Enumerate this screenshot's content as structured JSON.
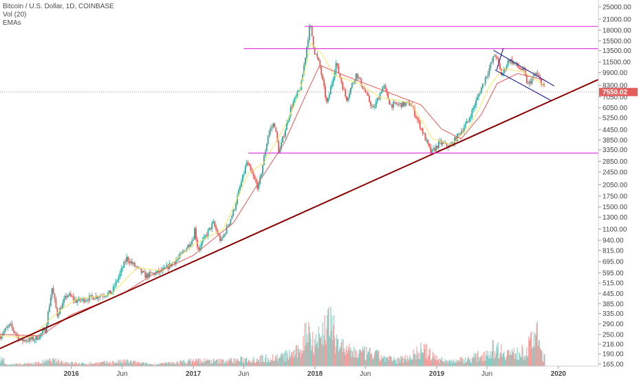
{
  "legend": {
    "title": "Bitcoin / U.S. Dollar, 1D, COINBASE",
    "volume": "Vol (20)",
    "emas": "EMAs"
  },
  "colors": {
    "up": "#26a69a",
    "down": "#ef5350",
    "trendline": "#8b0000",
    "horizontal_levels": "#e040e0",
    "channel": "#2a2a9a",
    "ema_fast": "#f5e96a",
    "ema_slow": "#e06060",
    "price_badge": "#e35d5d"
  },
  "chart_data": {
    "type": "candlestick",
    "title": "Bitcoin / U.S. Dollar, 1D, COINBASE",
    "y_scale": "log",
    "ylim": [
      160,
      27000
    ],
    "xlim": [
      "2015-06-01",
      "2020-04-30"
    ],
    "grid": false,
    "legend": "top-left",
    "y_ticks": [
      25000,
      21000,
      18000,
      15500,
      13500,
      11500,
      9900,
      8300,
      7050,
      6050,
      5250,
      4450,
      3850,
      3350,
      2850,
      2450,
      2050,
      1750,
      1500,
      1300,
      1100,
      940,
      815,
      695,
      595,
      515,
      445,
      385,
      335,
      290,
      250,
      218,
      190,
      165
    ],
    "y_tick_labels": [
      "25000.00",
      "21000.00",
      "18000.00",
      "15500.00",
      "13500.00",
      "11500.00",
      "9900.00",
      "8300.00",
      "7050.00",
      "6050.00",
      "5250.00",
      "4450.00",
      "3850.00",
      "3350.00",
      "2850.00",
      "2450.00",
      "2050.00",
      "1750.00",
      "1500.00",
      "1300.00",
      "1100.00",
      "940.00",
      "815.00",
      "695.00",
      "595.00",
      "515.00",
      "445.00",
      "385.00",
      "335.00",
      "290.00",
      "250.00",
      "218.00",
      "190.00",
      "165.00"
    ],
    "x_ticks": [
      {
        "date": "2016-01-01",
        "label": "2016"
      },
      {
        "date": "2016-06-01",
        "label": "Jun"
      },
      {
        "date": "2017-01-01",
        "label": "2017"
      },
      {
        "date": "2017-06-01",
        "label": "Jun"
      },
      {
        "date": "2018-01-01",
        "label": "2018"
      },
      {
        "date": "2018-06-01",
        "label": "Jun"
      },
      {
        "date": "2019-01-01",
        "label": "2019"
      },
      {
        "date": "2019-06-01",
        "label": "Jun"
      },
      {
        "date": "2020-01-01",
        "label": "2020"
      }
    ],
    "last_price": 7550.02,
    "last_price_label": "7550.02",
    "price_path": [
      [
        "2015-06-01",
        245
      ],
      [
        "2015-07-01",
        285
      ],
      [
        "2015-08-01",
        230
      ],
      [
        "2015-09-15",
        235
      ],
      [
        "2015-10-15",
        265
      ],
      [
        "2015-11-04",
        480
      ],
      [
        "2015-11-20",
        330
      ],
      [
        "2015-12-20",
        440
      ],
      [
        "2016-01-15",
        400
      ],
      [
        "2016-03-01",
        420
      ],
      [
        "2016-05-01",
        450
      ],
      [
        "2016-06-15",
        730
      ],
      [
        "2016-07-10",
        650
      ],
      [
        "2016-08-10",
        570
      ],
      [
        "2016-10-01",
        610
      ],
      [
        "2016-11-20",
        740
      ],
      [
        "2016-12-31",
        960
      ],
      [
        "2017-01-05",
        1100
      ],
      [
        "2017-01-15",
        820
      ],
      [
        "2017-03-01",
        1200
      ],
      [
        "2017-03-25",
        920
      ],
      [
        "2017-05-01",
        1400
      ],
      [
        "2017-06-10",
        2800
      ],
      [
        "2017-07-15",
        1950
      ],
      [
        "2017-08-15",
        4300
      ],
      [
        "2017-09-01",
        4900
      ],
      [
        "2017-09-15",
        3200
      ],
      [
        "2017-10-20",
        6000
      ],
      [
        "2017-11-20",
        8200
      ],
      [
        "2017-12-17",
        19800
      ],
      [
        "2017-12-30",
        13500
      ],
      [
        "2018-01-15",
        11000
      ],
      [
        "2018-02-06",
        6300
      ],
      [
        "2018-03-05",
        11300
      ],
      [
        "2018-04-05",
        6800
      ],
      [
        "2018-05-05",
        9800
      ],
      [
        "2018-06-25",
        5900
      ],
      [
        "2018-07-25",
        8300
      ],
      [
        "2018-08-15",
        6300
      ],
      [
        "2018-10-15",
        6400
      ],
      [
        "2018-11-20",
        4300
      ],
      [
        "2018-12-15",
        3200
      ],
      [
        "2019-01-10",
        3700
      ],
      [
        "2019-02-10",
        3500
      ],
      [
        "2019-04-05",
        5000
      ],
      [
        "2019-05-15",
        8000
      ],
      [
        "2019-06-26",
        13000
      ],
      [
        "2019-07-15",
        9500
      ],
      [
        "2019-08-06",
        12000
      ],
      [
        "2019-09-20",
        10000
      ],
      [
        "2019-10-01",
        8300
      ],
      [
        "2019-10-26",
        9800
      ],
      [
        "2019-11-15",
        8400
      ],
      [
        "2019-11-22",
        7550
      ]
    ],
    "ema_fast_path": [
      [
        "2015-06-01",
        245
      ],
      [
        "2015-09-01",
        240
      ],
      [
        "2015-11-20",
        340
      ],
      [
        "2016-01-15",
        410
      ],
      [
        "2016-05-01",
        440
      ],
      [
        "2016-07-15",
        640
      ],
      [
        "2016-10-01",
        610
      ],
      [
        "2017-01-01",
        880
      ],
      [
        "2017-04-01",
        1100
      ],
      [
        "2017-06-15",
        2400
      ],
      [
        "2017-08-01",
        2800
      ],
      [
        "2017-10-01",
        4600
      ],
      [
        "2017-11-15",
        7300
      ],
      [
        "2017-12-20",
        15000
      ],
      [
        "2018-01-20",
        13000
      ],
      [
        "2018-03-01",
        9500
      ],
      [
        "2018-05-15",
        8500
      ],
      [
        "2018-07-15",
        7000
      ],
      [
        "2018-10-15",
        6500
      ],
      [
        "2018-12-20",
        3900
      ],
      [
        "2019-02-15",
        3600
      ],
      [
        "2019-04-15",
        4800
      ],
      [
        "2019-06-10",
        8300
      ],
      [
        "2019-07-20",
        10500
      ],
      [
        "2019-09-20",
        10000
      ],
      [
        "2019-11-22",
        8200
      ]
    ],
    "ema_slow_path": [
      [
        "2015-06-01",
        250
      ],
      [
        "2015-10-01",
        245
      ],
      [
        "2016-01-01",
        330
      ],
      [
        "2016-06-01",
        440
      ],
      [
        "2016-09-01",
        580
      ],
      [
        "2017-01-01",
        760
      ],
      [
        "2017-05-01",
        1200
      ],
      [
        "2017-07-15",
        2100
      ],
      [
        "2017-10-01",
        3700
      ],
      [
        "2017-12-01",
        7000
      ],
      [
        "2018-01-15",
        11000
      ],
      [
        "2018-03-15",
        9800
      ],
      [
        "2018-06-01",
        8500
      ],
      [
        "2018-09-01",
        7200
      ],
      [
        "2018-11-15",
        6300
      ],
      [
        "2019-01-15",
        4500
      ],
      [
        "2019-03-15",
        3900
      ],
      [
        "2019-05-15",
        5500
      ],
      [
        "2019-07-01",
        8500
      ],
      [
        "2019-09-01",
        9800
      ],
      [
        "2019-11-22",
        8900
      ]
    ],
    "volume": [
      [
        "2015-06-15",
        0.03
      ],
      [
        "2015-09-15",
        0.06
      ],
      [
        "2015-11-04",
        0.12
      ],
      [
        "2016-02-01",
        0.05
      ],
      [
        "2016-06-18",
        0.1
      ],
      [
        "2016-09-01",
        0.04
      ],
      [
        "2017-01-05",
        0.12
      ],
      [
        "2017-03-15",
        0.1
      ],
      [
        "2017-06-15",
        0.14
      ],
      [
        "2017-09-15",
        0.18
      ],
      [
        "2017-11-15",
        0.3
      ],
      [
        "2017-12-10",
        0.9
      ],
      [
        "2017-12-22",
        0.55
      ],
      [
        "2018-01-20",
        0.6
      ],
      [
        "2018-02-06",
        1.0
      ],
      [
        "2018-04-10",
        0.3
      ],
      [
        "2018-06-25",
        0.25
      ],
      [
        "2018-09-01",
        0.12
      ],
      [
        "2018-11-20",
        0.35
      ],
      [
        "2019-02-01",
        0.1
      ],
      [
        "2019-04-10",
        0.15
      ],
      [
        "2019-06-26",
        0.38
      ],
      [
        "2019-08-15",
        0.25
      ],
      [
        "2019-09-25",
        0.3
      ],
      [
        "2019-10-26",
        0.75
      ],
      [
        "2019-11-20",
        0.18
      ]
    ],
    "annotations": [
      {
        "kind": "trendline",
        "from": [
          "2015-06-01",
          205
        ],
        "to": [
          "2020-04-30",
          9000
        ]
      },
      {
        "kind": "horizontal",
        "from": [
          "2017-12-01",
          19000
        ],
        "to": [
          "2020-04-30",
          19000
        ]
      },
      {
        "kind": "horizontal",
        "from": [
          "2017-06-01",
          13900
        ],
        "to": [
          "2020-04-30",
          13900
        ]
      },
      {
        "kind": "horizontal",
        "from": [
          "2017-06-15",
          3200
        ],
        "to": [
          "2020-04-30",
          3200
        ]
      },
      {
        "kind": "channel",
        "from": [
          "2019-06-20",
          13600
        ],
        "to": [
          "2019-12-20",
          8200
        ]
      },
      {
        "kind": "channel",
        "from": [
          "2019-06-25",
          10300
        ],
        "to": [
          "2019-12-10",
          6700
        ]
      },
      {
        "kind": "channel",
        "from": [
          "2019-06-30",
          10300
        ],
        "to": [
          "2019-07-20",
          14000
        ]
      }
    ]
  }
}
